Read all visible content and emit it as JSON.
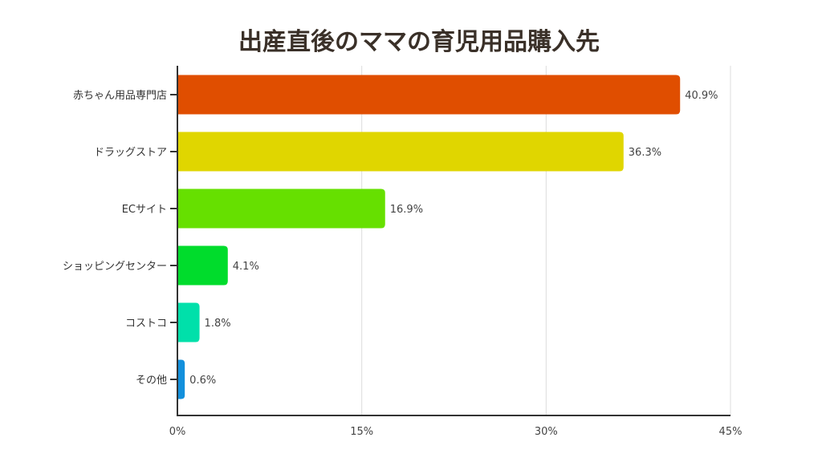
{
  "chart_data": {
    "type": "bar",
    "orientation": "horizontal",
    "title": "出産直後のママの育児用品購入先",
    "categories": [
      "赤ちゃん用品専門店",
      "ドラッグストア",
      "ECサイト",
      "ショッピングセンター",
      "コストコ",
      "その他"
    ],
    "values": [
      40.9,
      36.3,
      16.9,
      4.1,
      1.8,
      0.6
    ],
    "value_labels": [
      "40.9%",
      "36.3%",
      "16.9%",
      "4.1%",
      "1.8%",
      "0.6%"
    ],
    "colors": [
      "#e04e00",
      "#e0d600",
      "#66e000",
      "#00dc2c",
      "#00e0aa",
      "#1390dc"
    ],
    "xlim": [
      0,
      45
    ],
    "xticks": [
      0,
      15,
      30,
      45
    ],
    "xtick_labels": [
      "0%",
      "15%",
      "30%",
      "45%"
    ],
    "xlabel": "",
    "ylabel": "",
    "grid": true
  }
}
